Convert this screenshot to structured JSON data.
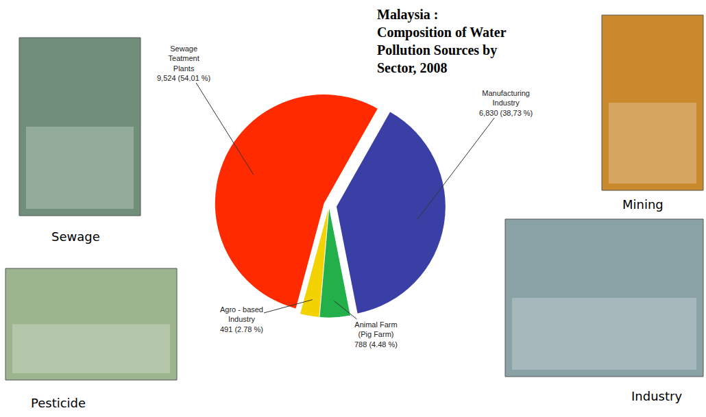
{
  "chart_data": {
    "type": "pie",
    "title": "Malaysia : Composition of Water Pollution Sources by Sector, 2008",
    "categories": [
      "Sewage Teatment Plants",
      "Manufacturing Industry",
      "Animal Farm (Pig Farm)",
      "Agro - based Industry"
    ],
    "values": [
      9524,
      6830,
      788,
      491
    ],
    "value_labels": [
      "9,524 (54.01 %)",
      "6,830 (38,73 %)",
      "788 (4.48 %)",
      "491 (2.78 %)"
    ],
    "colors": [
      "#ff2a00",
      "#3a3fa6",
      "#23b04b",
      "#f2d200"
    ],
    "data_labels": true,
    "annotations": [
      "Sewage",
      "Pesticide",
      "Mining",
      "Industry"
    ]
  }
}
